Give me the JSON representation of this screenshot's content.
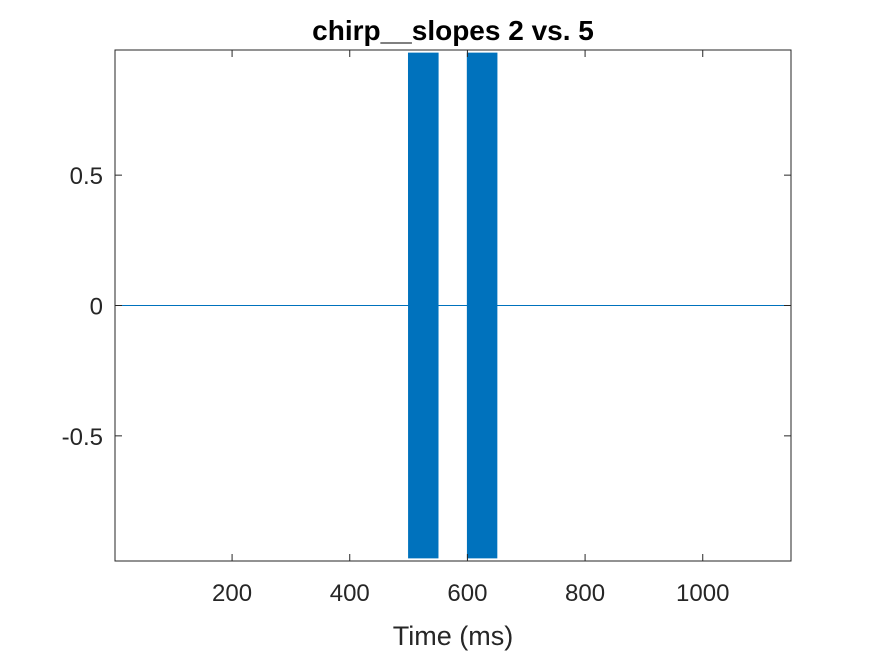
{
  "chart_data": {
    "type": "line",
    "title": "chirp__slopes 2 vs. 5",
    "xlabel": "Time (ms)",
    "ylabel": "",
    "xlim": [
      1,
      1150
    ],
    "ylim": [
      -0.98,
      0.98
    ],
    "xticks": [
      200,
      400,
      600,
      800,
      1000
    ],
    "xtick_labels": [
      "200",
      "400",
      "600",
      "800",
      "1000"
    ],
    "yticks": [
      -0.5,
      0,
      0.5
    ],
    "ytick_labels": [
      "-0.5",
      "0",
      "0.5"
    ],
    "grid": false,
    "legend": "none",
    "line_color": "#0072BD",
    "series": [
      {
        "segments": [
          {
            "x_start": 500,
            "x_end": 550,
            "amplitude": 0.97
          },
          {
            "x_start": 600,
            "x_end": 650,
            "amplitude": 0.97
          }
        ],
        "baseline": 0
      }
    ]
  }
}
